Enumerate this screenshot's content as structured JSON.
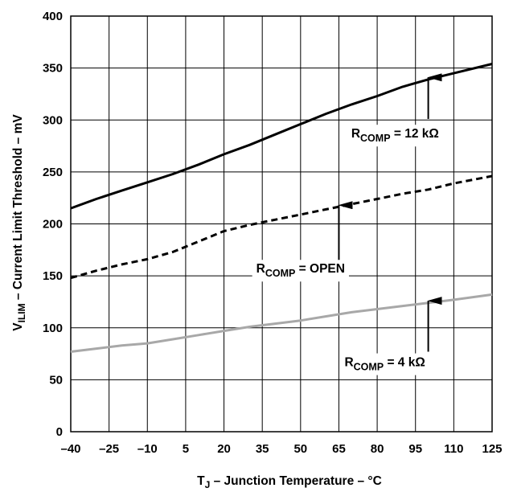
{
  "chart_data": {
    "type": "line",
    "xlabel": {
      "main": "T",
      "sub": "J",
      "rest": " – Junction Temperature – °C"
    },
    "ylabel": {
      "main": "V",
      "sub": "ILIM",
      "rest": " – Current Limit Threshold – mV"
    },
    "xlim": [
      -40,
      125
    ],
    "ylim": [
      0,
      400
    ],
    "xticks": [
      -40,
      -25,
      -10,
      5,
      20,
      35,
      50,
      65,
      80,
      95,
      110,
      125
    ],
    "xtick_labels": [
      "–40",
      "–25",
      "–10",
      "5",
      "20",
      "35",
      "50",
      "65",
      "80",
      "95",
      "110",
      "125"
    ],
    "yticks": [
      0,
      50,
      100,
      150,
      200,
      250,
      300,
      350,
      400
    ],
    "ytick_labels": [
      "0",
      "50",
      "100",
      "150",
      "200",
      "250",
      "300",
      "350",
      "400"
    ],
    "grid": true,
    "series": [
      {
        "name": "RCOMP = 12 kΩ",
        "style": "solid",
        "color": "#000000",
        "x": [
          -40,
          -30,
          -20,
          -10,
          0,
          10,
          20,
          30,
          40,
          50,
          60,
          70,
          80,
          90,
          100,
          110,
          125
        ],
        "y": [
          215,
          224,
          232,
          240,
          248,
          257,
          267,
          276,
          286,
          296,
          306,
          315,
          323,
          332,
          339,
          345,
          354
        ]
      },
      {
        "name": "RCOMP = OPEN",
        "style": "dashed",
        "color": "#000000",
        "x": [
          -40,
          -30,
          -20,
          -10,
          0,
          10,
          20,
          30,
          40,
          50,
          60,
          70,
          80,
          90,
          100,
          110,
          125
        ],
        "y": [
          148,
          155,
          161,
          166,
          173,
          183,
          193,
          199,
          204,
          209,
          214,
          219,
          224,
          229,
          233,
          239,
          246
        ]
      },
      {
        "name": "RCOMP = 4 kΩ",
        "style": "solid",
        "color": "#a8a8a8",
        "x": [
          -40,
          -30,
          -20,
          -10,
          0,
          10,
          20,
          30,
          40,
          50,
          60,
          70,
          80,
          90,
          100,
          110,
          125
        ],
        "y": [
          77,
          80,
          83,
          85,
          89,
          93,
          97,
          101,
          104,
          107,
          111,
          115,
          118,
          121,
          124,
          127,
          132
        ]
      }
    ],
    "annotations": [
      {
        "label_main": "R",
        "label_sub": "COMP",
        "label_rest": " = 12 kΩ",
        "arrow_x": 100,
        "arrow_tip_y": 341,
        "arrow_tail_y": 301,
        "text_x": 87,
        "text_y": 283
      },
      {
        "label_main": "R",
        "label_sub": "COMP",
        "label_rest": " = OPEN",
        "arrow_x": 65,
        "arrow_tip_y": 218,
        "arrow_tail_y": 164,
        "text_x": 50,
        "text_y": 153
      },
      {
        "label_main": "R",
        "label_sub": "COMP",
        "label_rest": " = 4 kΩ",
        "arrow_x": 100,
        "arrow_tip_y": 126,
        "arrow_tail_y": 77,
        "text_x": 83,
        "text_y": 63
      }
    ]
  }
}
